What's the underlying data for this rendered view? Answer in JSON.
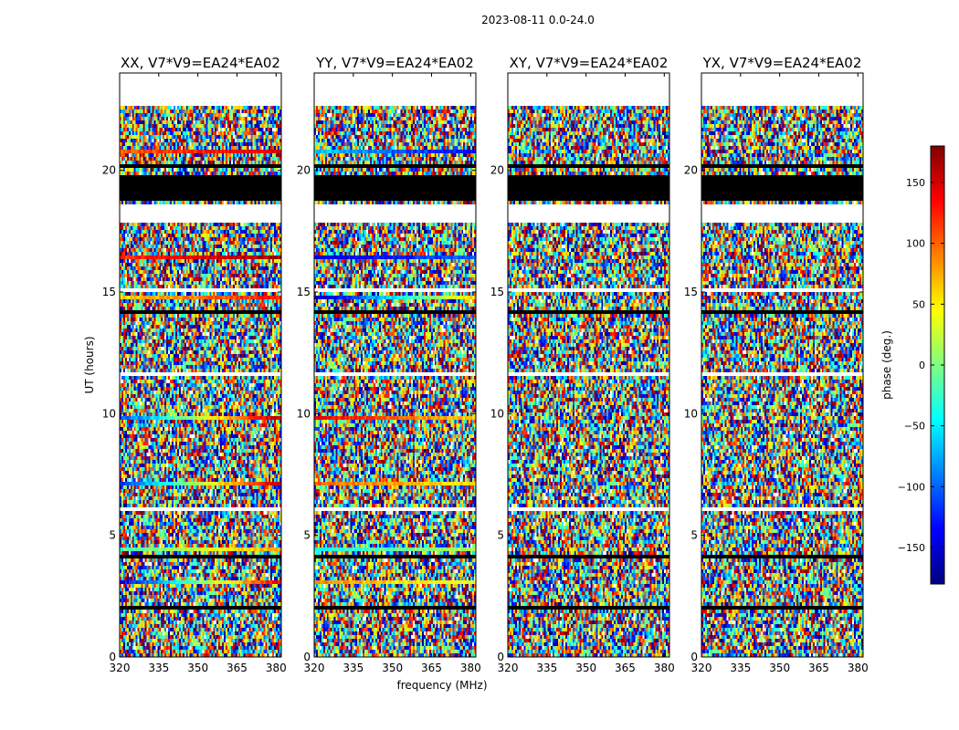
{
  "chart_data": {
    "type": "heatmap",
    "suptitle": "2023-08-11 0.0-24.0",
    "xlabel": "frequency (MHz)",
    "ylabel": "UT (hours)",
    "xlim": [
      320,
      382
    ],
    "ylim": [
      0,
      24
    ],
    "xticks": [
      320,
      335,
      350,
      365,
      380
    ],
    "yticks": [
      0,
      5,
      10,
      15,
      20
    ],
    "colorbar": {
      "label": "phase (deg.)",
      "range": [
        -180,
        180
      ],
      "ticks": [
        150,
        100,
        50,
        0,
        -50,
        -100,
        -150
      ],
      "colormap": "jet",
      "colors": [
        "#00007f",
        "#0000ff",
        "#007fff",
        "#00ffff",
        "#7fff7f",
        "#ffff00",
        "#ff7f00",
        "#ff0000",
        "#7f0000"
      ]
    },
    "panels": [
      {
        "title": "XX, V7*V9=EA24*EA02",
        "pol": "XX"
      },
      {
        "title": "YY, V7*V9=EA24*EA02",
        "pol": "YY"
      },
      {
        "title": "XY, V7*V9=EA24*EA02",
        "pol": "XY"
      },
      {
        "title": "YX, V7*V9=EA24*EA02",
        "pol": "YX"
      }
    ],
    "no_data_hours": [
      [
        22.7,
        24.0
      ],
      [
        18.0,
        18.6
      ],
      [
        17.85,
        18.0
      ],
      [
        20.5,
        20.6
      ],
      [
        1.0,
        1.1
      ],
      [
        2.05,
        2.1
      ],
      [
        15.05,
        15.15
      ],
      [
        15.55,
        15.65
      ],
      [
        12.4,
        12.45
      ],
      [
        11.6,
        11.65
      ],
      [
        6.05,
        6.1
      ]
    ],
    "flagged_black_hours": [
      [
        18.75,
        19.8
      ],
      [
        9.1,
        9.2
      ],
      [
        7.75,
        7.8
      ],
      [
        4.1,
        4.15
      ],
      [
        2.0,
        2.05
      ],
      [
        1.45,
        1.5
      ],
      [
        0.85,
        0.9
      ],
      [
        14.15,
        14.25
      ],
      [
        16.3,
        16.4
      ],
      [
        20.1,
        20.2
      ],
      [
        13.75,
        13.8
      ],
      [
        8.7,
        8.75
      ]
    ],
    "coherent_phase_hours": {
      "XX": [
        [
          20.75,
          20.85,
          100,
          150
        ],
        [
          16.4,
          16.5,
          120,
          170
        ],
        [
          14.7,
          14.8,
          60,
          130
        ],
        [
          9.8,
          9.95,
          -110,
          160
        ],
        [
          7.0,
          7.15,
          -120,
          160
        ],
        [
          3.0,
          3.15,
          -140,
          140
        ],
        [
          4.35,
          4.45,
          -20,
          80
        ]
      ],
      "YY": [
        [
          20.75,
          20.85,
          -60,
          -140
        ],
        [
          16.4,
          16.5,
          -150,
          -100
        ],
        [
          14.7,
          14.8,
          -160,
          60
        ],
        [
          9.8,
          9.95,
          140,
          60
        ],
        [
          7.0,
          7.15,
          100,
          50
        ],
        [
          3.0,
          3.15,
          90,
          30
        ],
        [
          4.35,
          4.45,
          -40,
          20
        ]
      ]
    }
  }
}
